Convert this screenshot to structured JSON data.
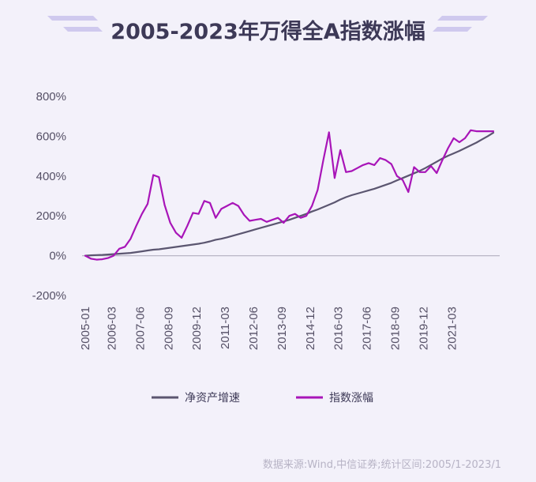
{
  "title": "2005-2023年万得全A指数涨幅",
  "source": "数据来源:Wind,中信证券;统计区间:2005/1-2023/1",
  "colors": {
    "background": "#f3f1fa",
    "title": "#3d3957",
    "decor": "#c8c2ea",
    "series_net_asset": "#5b5670",
    "series_index": "#a815b8",
    "axis": "#b9b6c6",
    "source": "#b7b3c5"
  },
  "chart_data": {
    "type": "line",
    "title": "2005-2023年万得全A指数涨幅",
    "xlabel": "",
    "ylabel": "",
    "ylim": [
      -200,
      800
    ],
    "yticks": [
      -200,
      0,
      200,
      400,
      600,
      800
    ],
    "ytick_labels": [
      "-200%",
      "0%",
      "200%",
      "400%",
      "600%",
      "800%"
    ],
    "xtick_labels": [
      "2005-01",
      "2006-03",
      "2007-06",
      "2008-09",
      "2009-12",
      "2011-03",
      "2012-06",
      "2013-09",
      "2014-12",
      "2016-03",
      "2017-06",
      "2018-09",
      "2019-12",
      "2021-03"
    ],
    "grid": false,
    "legend_position": "bottom",
    "x": [
      "2005-01",
      "2005-04",
      "2005-07",
      "2005-10",
      "2006-01",
      "2006-04",
      "2006-07",
      "2006-10",
      "2007-01",
      "2007-04",
      "2007-07",
      "2007-10",
      "2008-01",
      "2008-04",
      "2008-07",
      "2008-10",
      "2009-01",
      "2009-04",
      "2009-07",
      "2009-10",
      "2010-01",
      "2010-04",
      "2010-07",
      "2010-10",
      "2011-01",
      "2011-04",
      "2011-07",
      "2011-10",
      "2012-01",
      "2012-04",
      "2012-07",
      "2012-10",
      "2013-01",
      "2013-04",
      "2013-07",
      "2013-10",
      "2014-01",
      "2014-04",
      "2014-07",
      "2014-10",
      "2015-01",
      "2015-04",
      "2015-07",
      "2015-10",
      "2016-01",
      "2016-04",
      "2016-07",
      "2016-10",
      "2017-01",
      "2017-04",
      "2017-07",
      "2017-10",
      "2018-01",
      "2018-04",
      "2018-07",
      "2018-10",
      "2019-01",
      "2019-04",
      "2019-07",
      "2019-10",
      "2020-01",
      "2020-04",
      "2020-07",
      "2020-10",
      "2021-01",
      "2021-04",
      "2021-07",
      "2021-10",
      "2022-01",
      "2022-04",
      "2022-07",
      "2022-10",
      "2023-01"
    ],
    "series": [
      {
        "name": "净资产增速",
        "values": [
          0,
          2,
          3,
          4,
          6,
          8,
          10,
          12,
          14,
          18,
          22,
          26,
          30,
          32,
          36,
          40,
          44,
          48,
          52,
          56,
          60,
          65,
          72,
          80,
          85,
          92,
          100,
          108,
          116,
          124,
          132,
          140,
          148,
          156,
          164,
          172,
          180,
          190,
          200,
          210,
          222,
          232,
          244,
          256,
          268,
          282,
          294,
          304,
          312,
          320,
          328,
          336,
          346,
          356,
          366,
          378,
          390,
          402,
          414,
          426,
          440,
          456,
          472,
          488,
          502,
          514,
          526,
          540,
          554,
          568,
          584,
          600,
          618
        ]
      },
      {
        "name": "指数涨幅",
        "values": [
          0,
          -15,
          -20,
          -18,
          -12,
          0,
          35,
          45,
          85,
          150,
          210,
          260,
          405,
          395,
          255,
          165,
          115,
          90,
          150,
          215,
          210,
          275,
          265,
          190,
          235,
          250,
          265,
          250,
          205,
          175,
          180,
          185,
          170,
          180,
          190,
          165,
          200,
          210,
          190,
          200,
          250,
          330,
          480,
          620,
          390,
          530,
          420,
          425,
          440,
          455,
          465,
          455,
          490,
          480,
          460,
          400,
          380,
          320,
          445,
          420,
          420,
          450,
          415,
          480,
          540,
          590,
          570,
          590,
          630,
          625,
          625,
          625,
          625
        ]
      }
    ]
  }
}
